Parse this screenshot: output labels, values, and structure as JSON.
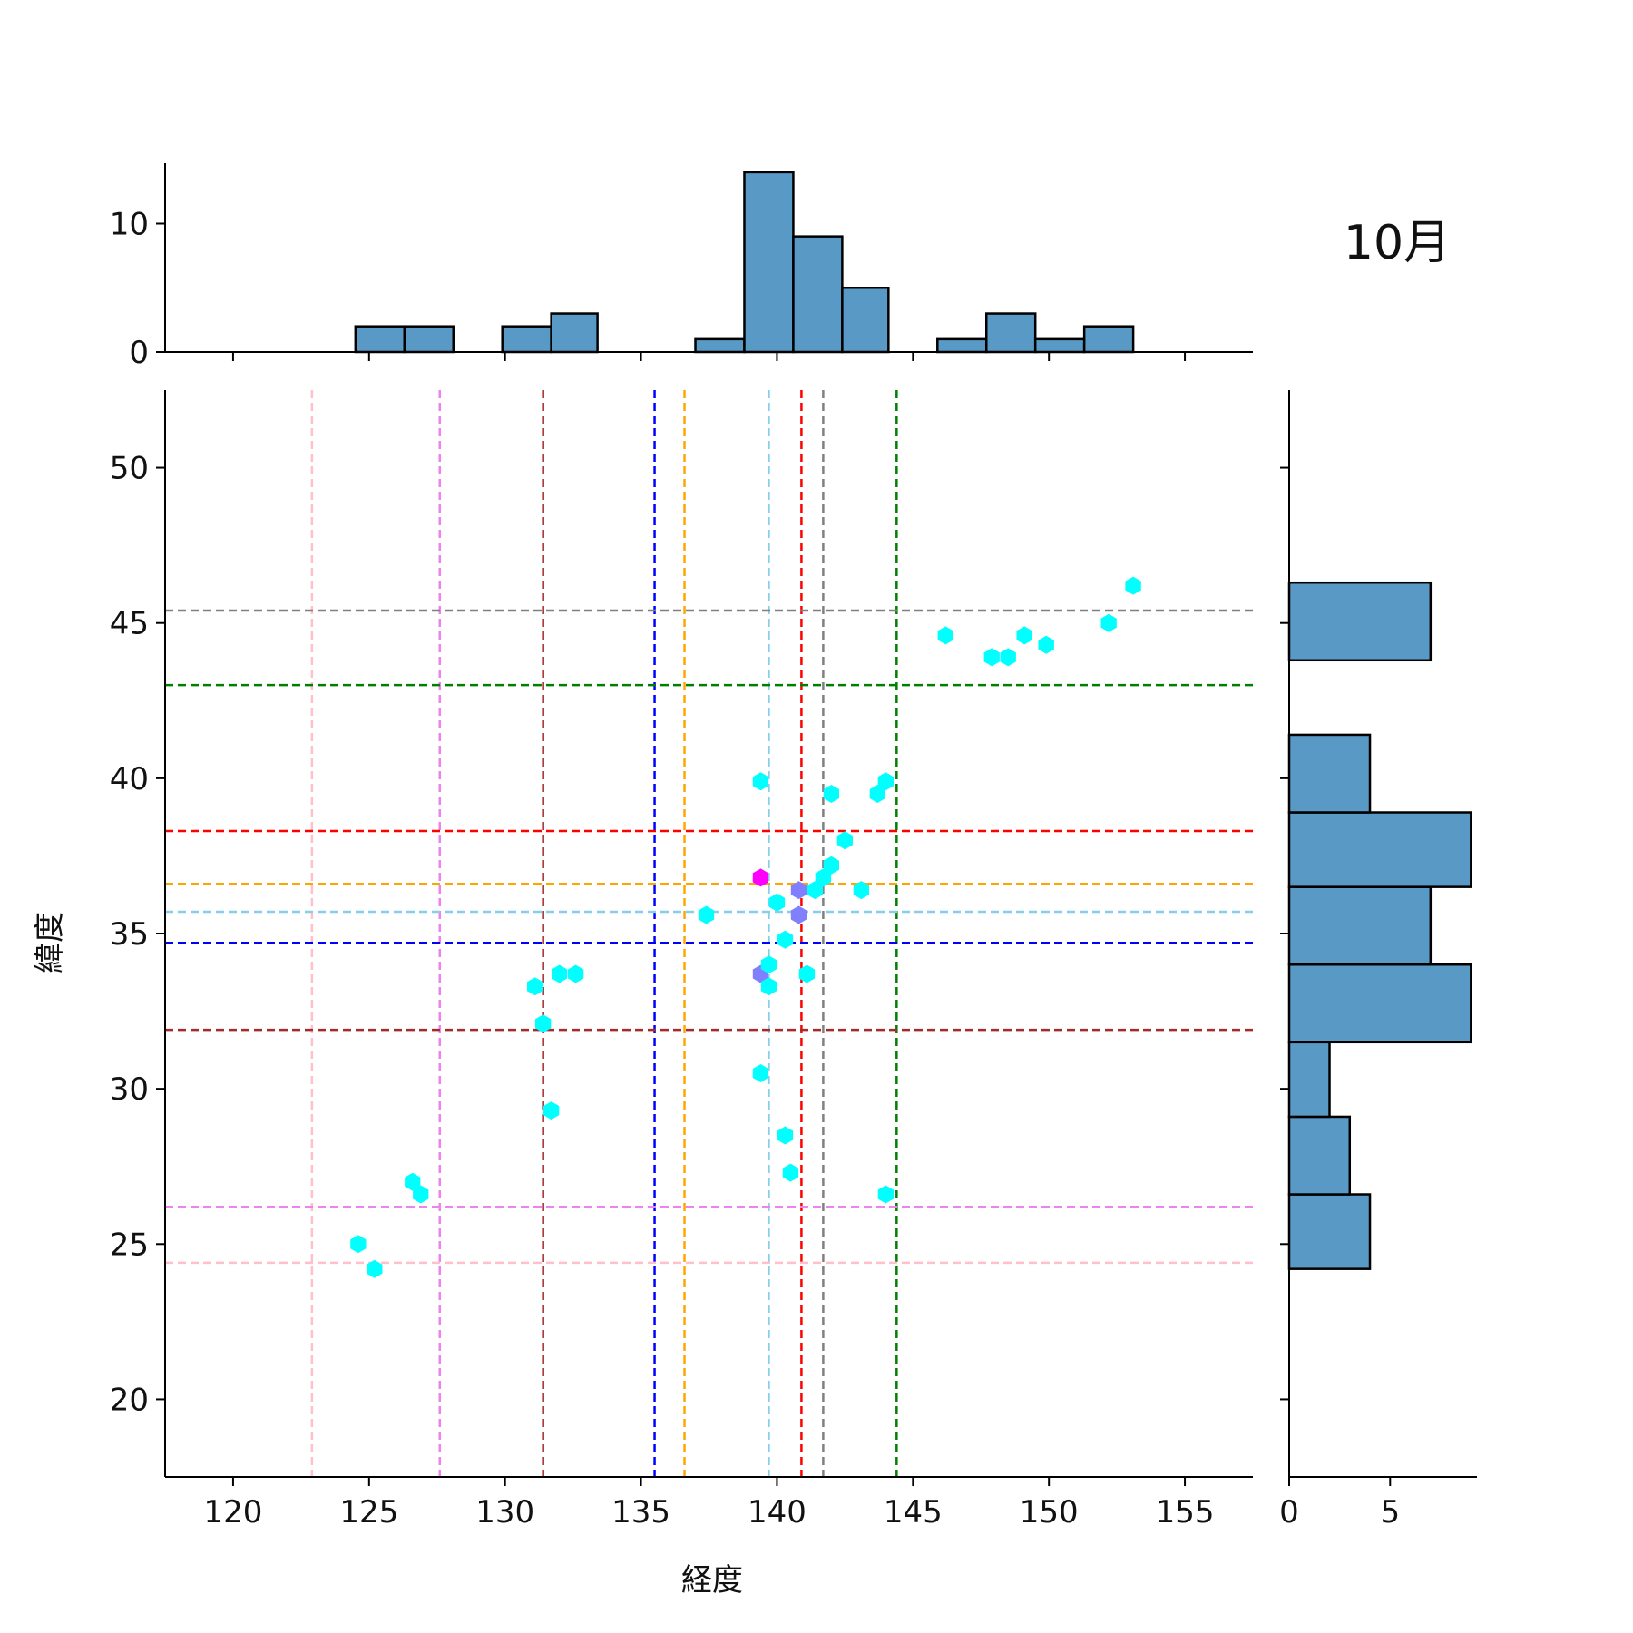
{
  "chart_data": {
    "type": "scatter",
    "title": "10月",
    "xlabel": "経度",
    "ylabel": "緯度",
    "xlim": [
      117.5,
      157.5
    ],
    "ylim": [
      17.5,
      52.5
    ],
    "x_ticks": [
      120,
      125,
      130,
      135,
      140,
      145,
      150,
      155
    ],
    "y_ticks": [
      20,
      25,
      30,
      35,
      40,
      45,
      50
    ],
    "grid": false,
    "hexbin_points": [
      {
        "x": 124.6,
        "y": 25.0,
        "count": 1
      },
      {
        "x": 125.2,
        "y": 24.2,
        "count": 1
      },
      {
        "x": 126.6,
        "y": 27.0,
        "count": 1
      },
      {
        "x": 126.9,
        "y": 26.6,
        "count": 1
      },
      {
        "x": 131.1,
        "y": 33.3,
        "count": 1
      },
      {
        "x": 131.4,
        "y": 32.1,
        "count": 1
      },
      {
        "x": 131.7,
        "y": 29.3,
        "count": 1
      },
      {
        "x": 132.0,
        "y": 33.7,
        "count": 1
      },
      {
        "x": 132.6,
        "y": 33.7,
        "count": 1
      },
      {
        "x": 137.4,
        "y": 35.6,
        "count": 1
      },
      {
        "x": 139.4,
        "y": 39.9,
        "count": 1
      },
      {
        "x": 139.4,
        "y": 30.5,
        "count": 1
      },
      {
        "x": 139.4,
        "y": 36.8,
        "count": 3
      },
      {
        "x": 139.4,
        "y": 33.7,
        "count": 2
      },
      {
        "x": 139.7,
        "y": 34.0,
        "count": 1
      },
      {
        "x": 139.7,
        "y": 33.3,
        "count": 1
      },
      {
        "x": 140.0,
        "y": 36.0,
        "count": 1
      },
      {
        "x": 140.3,
        "y": 34.8,
        "count": 1
      },
      {
        "x": 140.3,
        "y": 28.5,
        "count": 1
      },
      {
        "x": 140.5,
        "y": 27.3,
        "count": 1
      },
      {
        "x": 140.8,
        "y": 36.4,
        "count": 2
      },
      {
        "x": 140.8,
        "y": 35.6,
        "count": 2
      },
      {
        "x": 141.1,
        "y": 33.7,
        "count": 1
      },
      {
        "x": 141.4,
        "y": 36.4,
        "count": 1
      },
      {
        "x": 141.7,
        "y": 36.8,
        "count": 1
      },
      {
        "x": 142.0,
        "y": 37.2,
        "count": 1
      },
      {
        "x": 142.0,
        "y": 39.5,
        "count": 1
      },
      {
        "x": 142.5,
        "y": 38.0,
        "count": 1
      },
      {
        "x": 143.1,
        "y": 36.4,
        "count": 1
      },
      {
        "x": 143.7,
        "y": 39.5,
        "count": 1
      },
      {
        "x": 144.0,
        "y": 39.9,
        "count": 1
      },
      {
        "x": 144.0,
        "y": 26.6,
        "count": 1
      },
      {
        "x": 146.2,
        "y": 44.6,
        "count": 1
      },
      {
        "x": 147.9,
        "y": 43.9,
        "count": 1
      },
      {
        "x": 148.5,
        "y": 43.9,
        "count": 1
      },
      {
        "x": 149.1,
        "y": 44.6,
        "count": 1
      },
      {
        "x": 149.9,
        "y": 44.3,
        "count": 1
      },
      {
        "x": 152.2,
        "y": 45.0,
        "count": 1
      },
      {
        "x": 153.1,
        "y": 46.2,
        "count": 1
      }
    ],
    "vertical_lines": [
      {
        "x": 122.9,
        "color": "#ffc0cb"
      },
      {
        "x": 127.6,
        "color": "#ee82ee"
      },
      {
        "x": 131.4,
        "color": "#a52a2a"
      },
      {
        "x": 135.5,
        "color": "#0000ff"
      },
      {
        "x": 136.6,
        "color": "#ffa500"
      },
      {
        "x": 139.7,
        "color": "#87ceeb"
      },
      {
        "x": 140.9,
        "color": "#ff0000"
      },
      {
        "x": 141.7,
        "color": "#808080"
      },
      {
        "x": 144.4,
        "color": "#008000"
      }
    ],
    "horizontal_lines": [
      {
        "y": 45.4,
        "color": "#808080"
      },
      {
        "y": 43.0,
        "color": "#008000"
      },
      {
        "y": 38.3,
        "color": "#ff0000"
      },
      {
        "y": 36.6,
        "color": "#ffa500"
      },
      {
        "y": 35.7,
        "color": "#87ceeb"
      },
      {
        "y": 34.7,
        "color": "#0000ff"
      },
      {
        "y": 31.9,
        "color": "#a52a2a"
      },
      {
        "y": 26.2,
        "color": "#ee82ee"
      },
      {
        "y": 24.4,
        "color": "#ffc0cb"
      }
    ],
    "top_histogram": {
      "ylim": [
        0,
        14.7
      ],
      "y_ticks": [
        0,
        10
      ],
      "bins": [
        {
          "start": 124.5,
          "end": 126.3,
          "count": 2
        },
        {
          "start": 126.3,
          "end": 128.1,
          "count": 2
        },
        {
          "start": 128.1,
          "end": 129.9,
          "count": 0
        },
        {
          "start": 129.9,
          "end": 131.7,
          "count": 2
        },
        {
          "start": 131.7,
          "end": 133.4,
          "count": 3
        },
        {
          "start": 133.4,
          "end": 135.2,
          "count": 0
        },
        {
          "start": 135.2,
          "end": 137.0,
          "count": 0
        },
        {
          "start": 137.0,
          "end": 138.8,
          "count": 1
        },
        {
          "start": 138.8,
          "end": 140.6,
          "count": 14
        },
        {
          "start": 140.6,
          "end": 142.4,
          "count": 9
        },
        {
          "start": 142.4,
          "end": 144.1,
          "count": 5
        },
        {
          "start": 144.1,
          "end": 145.9,
          "count": 0
        },
        {
          "start": 145.9,
          "end": 147.7,
          "count": 1
        },
        {
          "start": 147.7,
          "end": 149.5,
          "count": 3
        },
        {
          "start": 149.5,
          "end": 151.3,
          "count": 1
        },
        {
          "start": 151.3,
          "end": 153.1,
          "count": 2
        }
      ]
    },
    "right_histogram": {
      "xlim": [
        0,
        9.3
      ],
      "x_ticks": [
        0,
        5
      ],
      "bins": [
        {
          "start": 24.2,
          "end": 26.6,
          "count": 4
        },
        {
          "start": 26.6,
          "end": 29.1,
          "count": 3
        },
        {
          "start": 29.1,
          "end": 31.5,
          "count": 2
        },
        {
          "start": 31.5,
          "end": 34.0,
          "count": 9
        },
        {
          "start": 34.0,
          "end": 36.5,
          "count": 7
        },
        {
          "start": 36.5,
          "end": 38.9,
          "count": 9
        },
        {
          "start": 38.9,
          "end": 41.4,
          "count": 4
        },
        {
          "start": 41.4,
          "end": 43.8,
          "count": 0
        },
        {
          "start": 43.8,
          "end": 46.3,
          "count": 7
        }
      ]
    },
    "colors": {
      "hist_fill": "#5899c6",
      "hist_edge": "#000000",
      "hex_low": "#00ffff",
      "hex_mid": "#8080ff",
      "hex_high": "#ff00ff"
    }
  }
}
